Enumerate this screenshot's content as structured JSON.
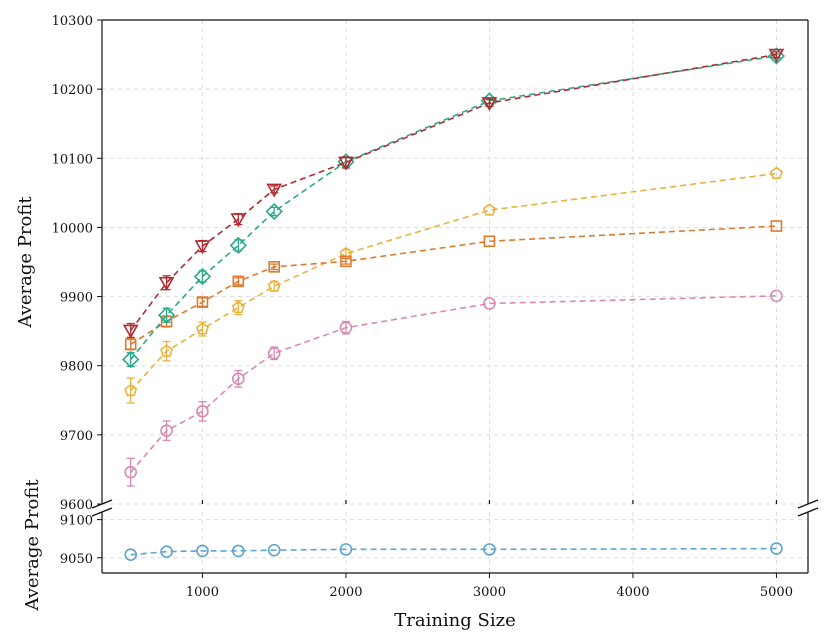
{
  "chart_data": {
    "type": "line",
    "xlabel": "Training Size",
    "ylabel_top": "Average Profit",
    "ylabel_bottom": "Average Profit",
    "xlim": [
      300,
      5220
    ],
    "x_ticks": [
      1000,
      2000,
      3000,
      4000,
      5000
    ],
    "x_tick_labels": [
      "1000",
      "2000",
      "3000",
      "4000",
      "5000"
    ],
    "top_panel": {
      "ylim": [
        9600,
        10300
      ],
      "y_ticks": [
        9600,
        9700,
        9800,
        9900,
        10000,
        10100,
        10200,
        10300
      ],
      "y_tick_labels": [
        "9600",
        "9700",
        "9800",
        "9900",
        "10000",
        "10100",
        "10200",
        "10300"
      ]
    },
    "bottom_panel": {
      "ylim": [
        9030,
        9110
      ],
      "y_ticks": [
        9050,
        9100
      ],
      "y_tick_labels": [
        "9050",
        "9100"
      ]
    },
    "broken_axis": true,
    "grid": true,
    "series": [
      {
        "name": "series-pink",
        "panel": "top",
        "marker": "circle",
        "color": "#d98ab3",
        "x": [
          500,
          750,
          1000,
          1250,
          1500,
          2000,
          3000,
          5000
        ],
        "y": [
          9646,
          9706,
          9734,
          9781,
          9818,
          9855,
          9890,
          9901
        ],
        "err": [
          20,
          14,
          14,
          12,
          9,
          9,
          0,
          0
        ]
      },
      {
        "name": "series-yellow",
        "panel": "top",
        "marker": "pentagon",
        "color": "#e9b23c",
        "x": [
          500,
          750,
          1000,
          1250,
          1500,
          2000,
          3000,
          5000
        ],
        "y": [
          9764,
          9821,
          9853,
          9884,
          9915,
          9962,
          10025,
          10078
        ],
        "err": [
          18,
          14,
          10,
          10,
          7,
          6,
          0,
          0
        ]
      },
      {
        "name": "series-orange",
        "panel": "top",
        "marker": "square",
        "color": "#dd7a30",
        "x": [
          500,
          750,
          1000,
          1250,
          1500,
          2000,
          3000,
          5000
        ],
        "y": [
          9831,
          9864,
          9892,
          9922,
          9943,
          9951,
          9980,
          10002
        ],
        "err": [
          8,
          8,
          6,
          5,
          4,
          4,
          0,
          0
        ]
      },
      {
        "name": "series-green",
        "panel": "top",
        "marker": "diamond",
        "color": "#2aaa8a",
        "x": [
          500,
          750,
          1000,
          1250,
          1500,
          2000,
          3000,
          5000
        ],
        "y": [
          9809,
          9873,
          9929,
          9974,
          10023,
          10095,
          10183,
          10248
        ],
        "err": [
          10,
          10,
          8,
          8,
          6,
          6,
          4,
          3
        ]
      },
      {
        "name": "series-red",
        "panel": "top",
        "marker": "triangle-down",
        "color": "#b22a2e",
        "x": [
          500,
          750,
          1000,
          1250,
          1500,
          2000,
          3000,
          5000
        ],
        "y": [
          9851,
          9920,
          9973,
          10012,
          10055,
          10094,
          10180,
          10250
        ],
        "err": [
          10,
          10,
          8,
          8,
          5,
          8,
          5,
          4
        ]
      },
      {
        "name": "series-blue",
        "panel": "bottom",
        "marker": "circle",
        "color": "#5ea5cf",
        "x": [
          500,
          750,
          1000,
          1250,
          1500,
          2000,
          3000,
          5000
        ],
        "y": [
          9054,
          9058,
          9059,
          9059,
          9060,
          9061,
          9061,
          9062
        ],
        "err": [
          0,
          0,
          0,
          0,
          0,
          0,
          0,
          0
        ]
      }
    ]
  }
}
